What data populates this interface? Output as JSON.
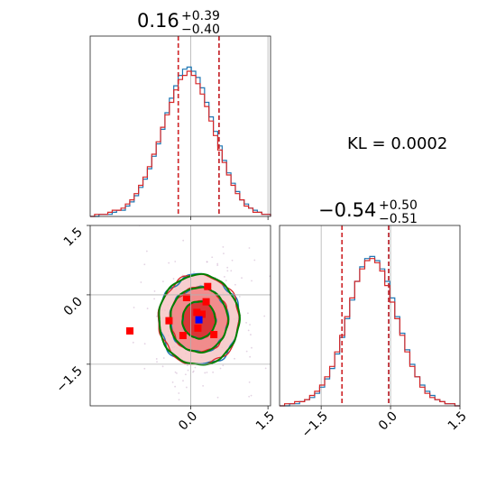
{
  "figure": {
    "kl_text": "KL = 0.0002"
  },
  "chart_data": {
    "type": "corner",
    "colors": {
      "series_a": "#1f77b4",
      "series_b": "#d62728",
      "contour_truth": "#008000",
      "marker_red": "#ff0000",
      "marker_blue": "#0000ff",
      "fill_light": "#f08080",
      "fill_dark": "#d62728",
      "guide": "#b0b0b0"
    },
    "params": [
      {
        "median": 0.16,
        "plus": "+0.39",
        "minus": "−0.40",
        "median_label": "0.16",
        "range": [
          -1.95,
          1.55
        ],
        "ticks": [
          {
            "value": 0.0,
            "label": "0.0"
          },
          {
            "value": 1.5,
            "label": "1.5"
          }
        ],
        "q_lo": -0.24,
        "q_hi": 0.55,
        "truth": [
          0.0,
          1.5
        ],
        "hist_a": [
          0,
          0,
          1,
          1,
          1,
          2,
          3,
          3,
          5,
          7,
          10,
          14,
          18,
          23,
          29,
          35,
          42,
          50,
          57,
          63,
          68,
          71,
          72,
          70,
          67,
          62,
          55,
          48,
          41,
          34,
          27,
          21,
          16,
          12,
          8,
          6,
          4,
          3,
          2,
          1,
          1
        ],
        "hist_b": [
          0,
          1,
          1,
          1,
          2,
          3,
          3,
          4,
          6,
          8,
          11,
          15,
          19,
          24,
          30,
          36,
          43,
          49,
          55,
          61,
          66,
          68,
          70,
          68,
          64,
          59,
          53,
          46,
          39,
          32,
          26,
          20,
          15,
          11,
          8,
          5,
          4,
          2,
          2,
          1,
          1
        ]
      },
      {
        "median": -0.54,
        "plus": "+0.50",
        "minus": "−0.51",
        "median_label": "−0.54",
        "range": [
          -2.4,
          1.5
        ],
        "ticks": [
          {
            "value": -1.5,
            "label": "−1.5"
          },
          {
            "value": 0.0,
            "label": "0.0"
          },
          {
            "value": 1.5,
            "label": "1.5"
          }
        ],
        "q_lo": -1.05,
        "q_hi": -0.04,
        "truth": [
          -1.5,
          0.0
        ],
        "hist_a": [
          0,
          0,
          1,
          1,
          2,
          3,
          4,
          6,
          9,
          13,
          18,
          25,
          33,
          42,
          51,
          60,
          67,
          71,
          72,
          70,
          66,
          60,
          52,
          43,
          35,
          27,
          20,
          14,
          10,
          7,
          5,
          3,
          2,
          1,
          1,
          0
        ],
        "hist_b": [
          0,
          1,
          1,
          2,
          2,
          3,
          5,
          7,
          10,
          14,
          19,
          26,
          34,
          43,
          52,
          60,
          66,
          70,
          71,
          69,
          65,
          58,
          50,
          42,
          34,
          26,
          19,
          14,
          9,
          6,
          4,
          3,
          2,
          1,
          1,
          0
        ]
      }
    ],
    "joint": {
      "center": [
        0.16,
        -0.54
      ],
      "truth_lines": {
        "x": [
          0.0
        ],
        "y": [
          0.0,
          -1.5
        ]
      },
      "blue_marker": [
        0.16,
        -0.54
      ],
      "red_markers": [
        [
          -0.08,
          -0.06
        ],
        [
          0.33,
          0.18
        ],
        [
          0.3,
          -0.15
        ],
        [
          0.12,
          -0.38
        ],
        [
          -0.42,
          -0.56
        ],
        [
          0.22,
          -0.42
        ],
        [
          0.14,
          -0.72
        ],
        [
          -0.15,
          -0.88
        ],
        [
          0.45,
          -0.86
        ],
        [
          -1.18,
          -0.78
        ]
      ],
      "contour_levels_sigma": [
        0.8,
        1.4,
        1.95
      ]
    }
  }
}
